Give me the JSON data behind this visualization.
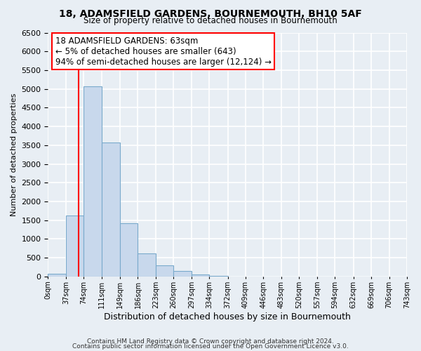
{
  "title": "18, ADAMSFIELD GARDENS, BOURNEMOUTH, BH10 5AF",
  "subtitle": "Size of property relative to detached houses in Bournemouth",
  "xlabel": "Distribution of detached houses by size in Bournemouth",
  "ylabel": "Number of detached properties",
  "bar_edges": [
    0,
    37,
    74,
    111,
    149,
    186,
    223,
    260,
    297,
    334,
    372,
    409,
    446,
    483,
    520,
    557,
    594,
    632,
    669,
    706,
    743
  ],
  "bar_heights": [
    70,
    1620,
    5070,
    3570,
    1420,
    610,
    300,
    145,
    60,
    20,
    5,
    0,
    0,
    0,
    0,
    0,
    0,
    0,
    0,
    0
  ],
  "bar_color": "#c8d8ec",
  "bar_edge_color": "#7aaacc",
  "property_line_x": 63,
  "property_line_color": "red",
  "ylim": [
    0,
    6500
  ],
  "yticks": [
    0,
    500,
    1000,
    1500,
    2000,
    2500,
    3000,
    3500,
    4000,
    4500,
    5000,
    5500,
    6000,
    6500
  ],
  "annotation_title": "18 ADAMSFIELD GARDENS: 63sqm",
  "annotation_line1": "← 5% of detached houses are smaller (643)",
  "annotation_line2": "94% of semi-detached houses are larger (12,124) →",
  "annotation_box_color": "white",
  "annotation_box_edge_color": "red",
  "footer1": "Contains HM Land Registry data © Crown copyright and database right 2024.",
  "footer2": "Contains public sector information licensed under the Open Government Licence v3.0.",
  "tick_labels": [
    "0sqm",
    "37sqm",
    "74sqm",
    "111sqm",
    "149sqm",
    "186sqm",
    "223sqm",
    "260sqm",
    "297sqm",
    "334sqm",
    "372sqm",
    "409sqm",
    "446sqm",
    "483sqm",
    "520sqm",
    "557sqm",
    "594sqm",
    "632sqm",
    "669sqm",
    "706sqm",
    "743sqm"
  ],
  "background_color": "#e8eef4",
  "grid_color": "white"
}
